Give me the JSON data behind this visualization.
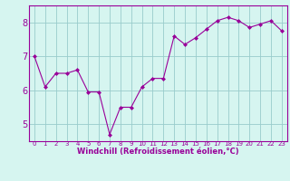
{
  "x": [
    0,
    1,
    2,
    3,
    4,
    5,
    6,
    7,
    8,
    9,
    10,
    11,
    12,
    13,
    14,
    15,
    16,
    17,
    18,
    19,
    20,
    21,
    22,
    23
  ],
  "y": [
    7.0,
    6.1,
    6.5,
    6.5,
    6.6,
    5.95,
    5.95,
    4.7,
    5.5,
    5.5,
    6.1,
    6.35,
    6.35,
    7.6,
    7.35,
    7.55,
    7.8,
    8.05,
    8.15,
    8.05,
    7.85,
    7.95,
    8.05,
    7.75
  ],
  "line_color": "#990099",
  "marker": "D",
  "marker_size": 2,
  "bg_color": "#d6f5f0",
  "grid_color": "#99cccc",
  "xlabel": "Windchill (Refroidissement éolien,°C)",
  "xlabel_color": "#990099",
  "tick_color": "#990099",
  "ylim": [
    4.5,
    8.5
  ],
  "xlim": [
    -0.5,
    23.5
  ],
  "yticks": [
    5,
    6,
    7,
    8
  ],
  "xticks": [
    0,
    1,
    2,
    3,
    4,
    5,
    6,
    7,
    8,
    9,
    10,
    11,
    12,
    13,
    14,
    15,
    16,
    17,
    18,
    19,
    20,
    21,
    22,
    23
  ],
  "ylabel_fontsize": 7,
  "xlabel_fontsize": 6,
  "xtick_fontsize": 5,
  "ytick_fontsize": 7
}
